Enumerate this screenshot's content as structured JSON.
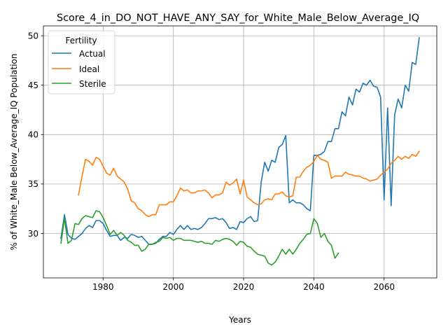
{
  "chart_data": {
    "type": "line",
    "title": "Score_4_in_DO_NOT_HAVE_ANY_SAY_for_White_Male_Below_Average_IQ",
    "xlabel": "Years",
    "ylabel": "% of White_Male Below_Average_IQ Population",
    "xlim": [
      1963,
      2075
    ],
    "ylim": [
      25.5,
      51.0
    ],
    "xticks": [
      1980,
      2000,
      2020,
      2040,
      2060
    ],
    "yticks": [
      30,
      35,
      40,
      45,
      50
    ],
    "grid": true,
    "legend": {
      "title": "Fertility",
      "placement": "top-left"
    },
    "series": [
      {
        "name": "Actual",
        "color": "#1f77b4",
        "points": [
          [
            1968,
            29.5
          ],
          [
            1969,
            31.9
          ],
          [
            1970,
            29.9
          ],
          [
            1971,
            29.5
          ],
          [
            1972,
            29.4
          ],
          [
            1973,
            29.7
          ],
          [
            1974,
            30.0
          ],
          [
            1975,
            30.5
          ],
          [
            1976,
            30.8
          ],
          [
            1977,
            30.6
          ],
          [
            1978,
            31.3
          ],
          [
            1979,
            31.3
          ],
          [
            1980,
            31.0
          ],
          [
            1981,
            30.3
          ],
          [
            1982,
            29.7
          ],
          [
            1983,
            29.8
          ],
          [
            1984,
            29.8
          ],
          [
            1985,
            29.3
          ],
          [
            1986,
            29.6
          ],
          [
            1987,
            29.5
          ],
          [
            1988,
            29.9
          ],
          [
            1989,
            29.8
          ],
          [
            1990,
            29.6
          ],
          [
            1991,
            29.7
          ],
          [
            1992,
            29.3
          ],
          [
            1993,
            28.9
          ],
          [
            1994,
            28.9
          ],
          [
            1995,
            29.0
          ],
          [
            1996,
            29.4
          ],
          [
            1997,
            29.7
          ],
          [
            1998,
            29.7
          ],
          [
            1999,
            30.1
          ],
          [
            2000,
            29.9
          ],
          [
            2001,
            30.4
          ],
          [
            2002,
            30.8
          ],
          [
            2003,
            30.4
          ],
          [
            2004,
            30.8
          ],
          [
            2005,
            30.4
          ],
          [
            2006,
            30.5
          ],
          [
            2007,
            30.4
          ],
          [
            2008,
            30.6
          ],
          [
            2009,
            31.0
          ],
          [
            2010,
            31.5
          ],
          [
            2011,
            31.5
          ],
          [
            2012,
            31.6
          ],
          [
            2013,
            31.4
          ],
          [
            2014,
            31.5
          ],
          [
            2015,
            31.1
          ],
          [
            2016,
            30.5
          ],
          [
            2017,
            30.6
          ],
          [
            2018,
            30.4
          ],
          [
            2019,
            31.2
          ],
          [
            2020,
            31.1
          ],
          [
            2021,
            31.5
          ],
          [
            2022,
            31.7
          ],
          [
            2023,
            31.2
          ],
          [
            2024,
            31.3
          ],
          [
            2025,
            35.2
          ],
          [
            2026,
            37.2
          ],
          [
            2027,
            36.3
          ],
          [
            2028,
            37.4
          ],
          [
            2029,
            37.2
          ],
          [
            2030,
            38.7
          ],
          [
            2031,
            39.0
          ],
          [
            2032,
            39.9
          ],
          [
            2033,
            33.1
          ],
          [
            2034,
            33.4
          ],
          [
            2035,
            33.1
          ],
          [
            2036,
            33.1
          ],
          [
            2037,
            32.9
          ],
          [
            2038,
            32.5
          ],
          [
            2039,
            32.3
          ],
          [
            2040,
            37.9
          ],
          [
            2041,
            37.9
          ],
          [
            2042,
            38.0
          ],
          [
            2043,
            38.3
          ],
          [
            2044,
            39.3
          ],
          [
            2045,
            39.3
          ],
          [
            2046,
            40.6
          ],
          [
            2047,
            40.6
          ],
          [
            2048,
            42.3
          ],
          [
            2049,
            41.9
          ],
          [
            2050,
            43.8
          ],
          [
            2051,
            43.0
          ],
          [
            2052,
            44.6
          ],
          [
            2053,
            44.3
          ],
          [
            2054,
            45.2
          ],
          [
            2055,
            45.0
          ],
          [
            2056,
            45.5
          ],
          [
            2057,
            44.9
          ],
          [
            2058,
            44.8
          ],
          [
            2059,
            43.8
          ],
          [
            2060,
            33.4
          ],
          [
            2061,
            42.7
          ],
          [
            2062,
            32.8
          ],
          [
            2063,
            42.0
          ],
          [
            2064,
            43.6
          ],
          [
            2065,
            42.7
          ],
          [
            2066,
            45.0
          ],
          [
            2067,
            44.4
          ],
          [
            2068,
            47.3
          ],
          [
            2069,
            47.1
          ],
          [
            2070,
            49.8
          ]
        ]
      },
      {
        "name": "Ideal",
        "color": "#ff7f0e",
        "points": [
          [
            1973,
            33.9
          ],
          [
            1974,
            35.8
          ],
          [
            1975,
            37.5
          ],
          [
            1976,
            37.3
          ],
          [
            1977,
            36.9
          ],
          [
            1978,
            37.7
          ],
          [
            1979,
            37.5
          ],
          [
            1980,
            36.8
          ],
          [
            1981,
            36.1
          ],
          [
            1982,
            35.9
          ],
          [
            1983,
            36.6
          ],
          [
            1984,
            35.8
          ],
          [
            1985,
            35.5
          ],
          [
            1986,
            35.2
          ],
          [
            1987,
            34.5
          ],
          [
            1988,
            33.3
          ],
          [
            1989,
            33.1
          ],
          [
            1990,
            32.5
          ],
          [
            1991,
            32.3
          ],
          [
            1992,
            31.9
          ],
          [
            1993,
            31.7
          ],
          [
            1994,
            31.9
          ],
          [
            1995,
            31.9
          ],
          [
            1996,
            32.9
          ],
          [
            1997,
            32.9
          ],
          [
            1998,
            32.9
          ],
          [
            1999,
            33.2
          ],
          [
            2000,
            33.2
          ],
          [
            2001,
            33.8
          ],
          [
            2002,
            34.6
          ],
          [
            2003,
            34.3
          ],
          [
            2004,
            34.4
          ],
          [
            2005,
            34.1
          ],
          [
            2006,
            34.1
          ],
          [
            2007,
            34.3
          ],
          [
            2008,
            34.3
          ],
          [
            2009,
            34.4
          ],
          [
            2010,
            34.1
          ],
          [
            2011,
            33.6
          ],
          [
            2012,
            33.9
          ],
          [
            2013,
            33.9
          ],
          [
            2014,
            34.1
          ],
          [
            2015,
            35.2
          ],
          [
            2016,
            34.9
          ],
          [
            2017,
            35.1
          ],
          [
            2018,
            35.5
          ],
          [
            2019,
            34.0
          ],
          [
            2020,
            35.4
          ],
          [
            2021,
            33.7
          ],
          [
            2022,
            33.4
          ],
          [
            2023,
            33.1
          ],
          [
            2024,
            32.9
          ],
          [
            2025,
            33.0
          ],
          [
            2026,
            33.4
          ],
          [
            2027,
            33.5
          ],
          [
            2028,
            33.4
          ],
          [
            2029,
            34.0
          ],
          [
            2030,
            34.0
          ],
          [
            2031,
            34.2
          ],
          [
            2032,
            33.8
          ],
          [
            2033,
            33.7
          ],
          [
            2034,
            33.8
          ],
          [
            2035,
            35.7
          ],
          [
            2036,
            35.7
          ],
          [
            2037,
            36.3
          ],
          [
            2038,
            36.7
          ],
          [
            2039,
            36.9
          ],
          [
            2040,
            37.3
          ],
          [
            2041,
            37.9
          ],
          [
            2042,
            37.5
          ],
          [
            2043,
            37.4
          ],
          [
            2044,
            37.2
          ],
          [
            2045,
            35.6
          ],
          [
            2046,
            35.8
          ],
          [
            2047,
            35.8
          ],
          [
            2048,
            35.8
          ],
          [
            2049,
            36.2
          ],
          [
            2050,
            36.0
          ],
          [
            2051,
            35.9
          ],
          [
            2052,
            35.8
          ],
          [
            2053,
            35.8
          ],
          [
            2054,
            35.6
          ],
          [
            2055,
            35.5
          ],
          [
            2056,
            35.3
          ],
          [
            2057,
            35.4
          ],
          [
            2058,
            35.5
          ],
          [
            2059,
            35.9
          ],
          [
            2060,
            36.2
          ],
          [
            2061,
            36.5
          ],
          [
            2062,
            37.1
          ],
          [
            2063,
            37.4
          ],
          [
            2064,
            37.8
          ],
          [
            2065,
            37.5
          ],
          [
            2066,
            37.8
          ],
          [
            2067,
            37.6
          ],
          [
            2068,
            38.0
          ],
          [
            2069,
            37.8
          ],
          [
            2070,
            38.3
          ]
        ]
      },
      {
        "name": "Sterile",
        "color": "#2ca02c",
        "points": [
          [
            1968,
            29.0
          ],
          [
            1969,
            31.5
          ],
          [
            1970,
            29.0
          ],
          [
            1971,
            29.3
          ],
          [
            1972,
            31.0
          ],
          [
            1973,
            30.9
          ],
          [
            1974,
            31.5
          ],
          [
            1975,
            31.8
          ],
          [
            1976,
            31.7
          ],
          [
            1977,
            31.6
          ],
          [
            1978,
            32.3
          ],
          [
            1979,
            32.2
          ],
          [
            1980,
            31.6
          ],
          [
            1981,
            30.8
          ],
          [
            1982,
            29.9
          ],
          [
            1983,
            30.3
          ],
          [
            1984,
            29.8
          ],
          [
            1985,
            30.1
          ],
          [
            1986,
            29.8
          ],
          [
            1987,
            29.3
          ],
          [
            1988,
            29.1
          ],
          [
            1989,
            28.8
          ],
          [
            1990,
            28.8
          ],
          [
            1991,
            28.2
          ],
          [
            1992,
            28.4
          ],
          [
            1993,
            28.9
          ],
          [
            1994,
            28.9
          ],
          [
            1995,
            29.1
          ],
          [
            1996,
            29.2
          ],
          [
            1997,
            29.6
          ],
          [
            1998,
            29.5
          ],
          [
            1999,
            29.6
          ],
          [
            2000,
            29.3
          ],
          [
            2001,
            29.5
          ],
          [
            2002,
            29.5
          ],
          [
            2003,
            29.3
          ],
          [
            2004,
            29.3
          ],
          [
            2005,
            29.3
          ],
          [
            2006,
            29.2
          ],
          [
            2007,
            29.1
          ],
          [
            2008,
            29.2
          ],
          [
            2009,
            29.0
          ],
          [
            2010,
            29.0
          ],
          [
            2011,
            28.9
          ],
          [
            2012,
            29.3
          ],
          [
            2013,
            29.2
          ],
          [
            2014,
            29.4
          ],
          [
            2015,
            29.5
          ],
          [
            2016,
            29.4
          ],
          [
            2017,
            29.2
          ],
          [
            2018,
            28.8
          ],
          [
            2019,
            29.2
          ],
          [
            2020,
            29.1
          ],
          [
            2021,
            28.7
          ],
          [
            2022,
            28.6
          ],
          [
            2023,
            28.2
          ],
          [
            2024,
            27.9
          ],
          [
            2025,
            27.8
          ],
          [
            2026,
            27.7
          ],
          [
            2027,
            27.0
          ],
          [
            2028,
            26.8
          ],
          [
            2029,
            27.1
          ],
          [
            2030,
            27.7
          ],
          [
            2031,
            28.4
          ],
          [
            2032,
            27.9
          ],
          [
            2033,
            28.4
          ],
          [
            2034,
            27.9
          ],
          [
            2035,
            28.4
          ],
          [
            2036,
            29.0
          ],
          [
            2037,
            29.4
          ],
          [
            2038,
            29.9
          ],
          [
            2039,
            30.0
          ],
          [
            2040,
            31.5
          ],
          [
            2041,
            31.0
          ],
          [
            2042,
            29.6
          ],
          [
            2043,
            30.0
          ],
          [
            2044,
            29.2
          ],
          [
            2045,
            28.8
          ],
          [
            2046,
            27.5
          ],
          [
            2047,
            28.0
          ]
        ]
      }
    ]
  }
}
